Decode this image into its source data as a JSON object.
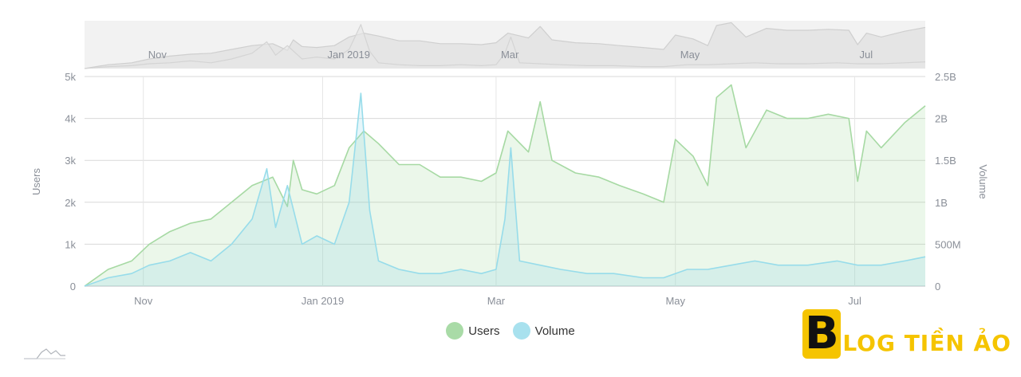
{
  "chart_data": {
    "type": "area",
    "x_ticks": [
      "Nov",
      "Jan 2019",
      "Mar",
      "May",
      "Jul"
    ],
    "navigator_ticks": [
      "Nov",
      "Jan 2019",
      "Mar",
      "May",
      "Jul"
    ],
    "y_left": {
      "label": "Users",
      "range": [
        0,
        5000
      ],
      "ticks": [
        "0",
        "1k",
        "2k",
        "3k",
        "4k",
        "5k"
      ]
    },
    "y_right": {
      "label": "Volume",
      "range": [
        0,
        2500000000
      ],
      "ticks": [
        "0",
        "500M",
        "1B",
        "1.5B",
        "2B",
        "2.5B"
      ]
    },
    "grid": true,
    "legend": "bottom-center",
    "colors": {
      "users": "#8fd18d",
      "volume": "#8fd8e8"
    },
    "series": [
      {
        "name": "Users",
        "axis": "left",
        "x": [
          "2018-10-12",
          "2018-10-20",
          "2018-10-28",
          "2018-11-03",
          "2018-11-10",
          "2018-11-17",
          "2018-11-24",
          "2018-12-01",
          "2018-12-08",
          "2018-12-15",
          "2018-12-20",
          "2018-12-22",
          "2018-12-25",
          "2018-12-30",
          "2019-01-05",
          "2019-01-10",
          "2019-01-15",
          "2019-01-20",
          "2019-01-27",
          "2019-02-03",
          "2019-02-10",
          "2019-02-17",
          "2019-02-24",
          "2019-03-01",
          "2019-03-05",
          "2019-03-12",
          "2019-03-16",
          "2019-03-20",
          "2019-03-28",
          "2019-04-05",
          "2019-04-12",
          "2019-04-20",
          "2019-04-27",
          "2019-05-01",
          "2019-05-07",
          "2019-05-12",
          "2019-05-15",
          "2019-05-20",
          "2019-05-25",
          "2019-06-01",
          "2019-06-08",
          "2019-06-15",
          "2019-06-22",
          "2019-06-29",
          "2019-07-02",
          "2019-07-05",
          "2019-07-10",
          "2019-07-18",
          "2019-07-25"
        ],
        "values": [
          0,
          400,
          600,
          1000,
          1300,
          1500,
          1600,
          2000,
          2400,
          2600,
          1900,
          3000,
          2300,
          2200,
          2400,
          3300,
          3700,
          3400,
          2900,
          2900,
          2600,
          2600,
          2500,
          2700,
          3700,
          3200,
          4400,
          3000,
          2700,
          2600,
          2400,
          2200,
          2000,
          3500,
          3100,
          2400,
          4500,
          4800,
          3300,
          4200,
          4000,
          4000,
          4100,
          4000,
          2500,
          3700,
          3300,
          3900,
          4300
        ]
      },
      {
        "name": "Volume",
        "axis": "right",
        "x": [
          "2018-10-12",
          "2018-10-20",
          "2018-10-28",
          "2018-11-03",
          "2018-11-10",
          "2018-11-17",
          "2018-11-24",
          "2018-12-01",
          "2018-12-08",
          "2018-12-13",
          "2018-12-16",
          "2018-12-20",
          "2018-12-25",
          "2018-12-30",
          "2019-01-05",
          "2019-01-10",
          "2019-01-14",
          "2019-01-17",
          "2019-01-20",
          "2019-01-27",
          "2019-02-03",
          "2019-02-10",
          "2019-02-17",
          "2019-02-24",
          "2019-03-01",
          "2019-03-04",
          "2019-03-06",
          "2019-03-09",
          "2019-03-16",
          "2019-03-23",
          "2019-04-01",
          "2019-04-10",
          "2019-04-20",
          "2019-04-27",
          "2019-05-05",
          "2019-05-12",
          "2019-05-20",
          "2019-05-28",
          "2019-06-05",
          "2019-06-15",
          "2019-06-25",
          "2019-07-02",
          "2019-07-10",
          "2019-07-18",
          "2019-07-25"
        ],
        "values": [
          0,
          100000000,
          150000000,
          250000000,
          300000000,
          400000000,
          300000000,
          500000000,
          800000000,
          1400000000,
          700000000,
          1200000000,
          500000000,
          600000000,
          500000000,
          1000000000,
          2300000000,
          900000000,
          300000000,
          200000000,
          150000000,
          150000000,
          200000000,
          150000000,
          200000000,
          800000000,
          1650000000,
          300000000,
          250000000,
          200000000,
          150000000,
          150000000,
          100000000,
          100000000,
          200000000,
          200000000,
          250000000,
          300000000,
          250000000,
          250000000,
          300000000,
          250000000,
          250000000,
          300000000,
          350000000
        ]
      }
    ]
  },
  "legend_items": [
    {
      "label": "Users",
      "color": "#8fd18d"
    },
    {
      "label": "Volume",
      "color": "#8fd8e8"
    }
  ],
  "logo": {
    "letter": "B",
    "text": "LOG TIỀN ẢO"
  }
}
